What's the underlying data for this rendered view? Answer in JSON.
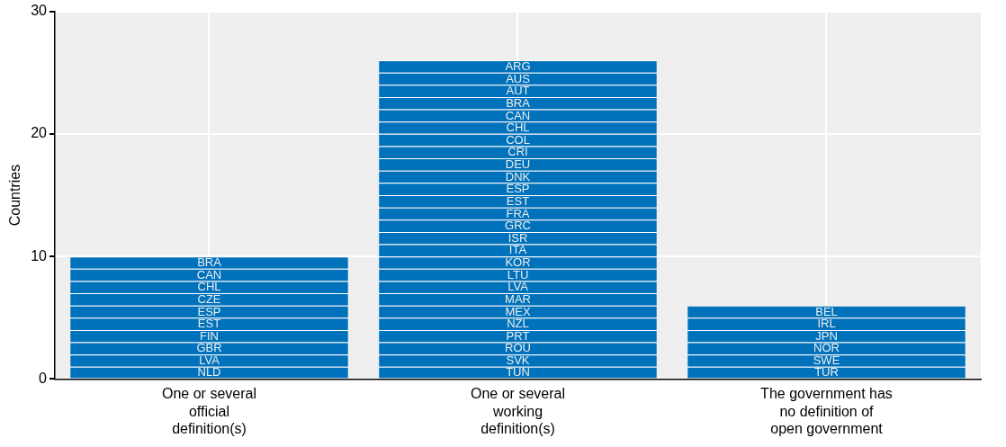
{
  "chart_data": {
    "type": "bar",
    "stacked": true,
    "ylabel": "Countries",
    "categories": [
      "One or several official definition(s)",
      "One or several working definition(s)",
      "The government has no definition of open government"
    ],
    "ylim": [
      0,
      30
    ],
    "yticks": [
      0,
      10,
      20,
      30
    ],
    "grid": true,
    "legend": false,
    "series": [
      {
        "color": "#0072bc",
        "values": [
          1,
          1,
          1
        ],
        "value_labels": [
          "NLD",
          "TUN",
          "TUR"
        ]
      },
      {
        "color": "#0072bc",
        "values": [
          1,
          1,
          1
        ],
        "value_labels": [
          "LVA",
          "SVK",
          "SWE"
        ]
      },
      {
        "color": "#0072bc",
        "values": [
          1,
          1,
          1
        ],
        "value_labels": [
          "GBR",
          "ROU",
          "NOR"
        ]
      },
      {
        "color": "#0072bc",
        "values": [
          1,
          1,
          1
        ],
        "value_labels": [
          "FIN",
          "PRT",
          "JPN"
        ]
      },
      {
        "color": "#0072bc",
        "values": [
          1,
          1,
          1
        ],
        "value_labels": [
          "EST",
          "NZL",
          "IRL"
        ]
      },
      {
        "color": "#0072bc",
        "values": [
          1,
          1,
          1
        ],
        "value_labels": [
          "ESP",
          "MEX",
          "BEL"
        ]
      },
      {
        "color": "#0072bc",
        "values": [
          1,
          1,
          null
        ],
        "value_labels": [
          "CZE",
          "MAR",
          null
        ]
      },
      {
        "color": "#0072bc",
        "values": [
          1,
          1,
          null
        ],
        "value_labels": [
          "CHL",
          "LVA",
          null
        ]
      },
      {
        "color": "#0072bc",
        "values": [
          1,
          1,
          null
        ],
        "value_labels": [
          "CAN",
          "LTU",
          null
        ]
      },
      {
        "color": "#0072bc",
        "values": [
          1,
          1,
          null
        ],
        "value_labels": [
          "BRA",
          "KOR",
          null
        ]
      },
      {
        "color": "#0072bc",
        "values": [
          null,
          1,
          null
        ],
        "value_labels": [
          null,
          "ITA",
          null
        ]
      },
      {
        "color": "#0072bc",
        "values": [
          null,
          1,
          null
        ],
        "value_labels": [
          null,
          "ISR",
          null
        ]
      },
      {
        "color": "#0072bc",
        "values": [
          null,
          1,
          null
        ],
        "value_labels": [
          null,
          "GRC",
          null
        ]
      },
      {
        "color": "#0072bc",
        "values": [
          null,
          1,
          null
        ],
        "value_labels": [
          null,
          "FRA",
          null
        ]
      },
      {
        "color": "#0072bc",
        "values": [
          null,
          1,
          null
        ],
        "value_labels": [
          null,
          "EST",
          null
        ]
      },
      {
        "color": "#0072bc",
        "values": [
          null,
          1,
          null
        ],
        "value_labels": [
          null,
          "ESP",
          null
        ]
      },
      {
        "color": "#0072bc",
        "values": [
          null,
          1,
          null
        ],
        "value_labels": [
          null,
          "DNK",
          null
        ]
      },
      {
        "color": "#0072bc",
        "values": [
          null,
          1,
          null
        ],
        "value_labels": [
          null,
          "DEU",
          null
        ]
      },
      {
        "color": "#0072bc",
        "values": [
          null,
          1,
          null
        ],
        "value_labels": [
          null,
          "CRI",
          null
        ]
      },
      {
        "color": "#0072bc",
        "values": [
          null,
          1,
          null
        ],
        "value_labels": [
          null,
          "COL",
          null
        ]
      },
      {
        "color": "#0072bc",
        "values": [
          null,
          1,
          null
        ],
        "value_labels": [
          null,
          "CHL",
          null
        ]
      },
      {
        "color": "#0072bc",
        "values": [
          null,
          1,
          null
        ],
        "value_labels": [
          null,
          "CAN",
          null
        ]
      },
      {
        "color": "#0072bc",
        "values": [
          null,
          1,
          null
        ],
        "value_labels": [
          null,
          "BRA",
          null
        ]
      },
      {
        "color": "#0072bc",
        "values": [
          null,
          1,
          null
        ],
        "value_labels": [
          null,
          "AUT",
          null
        ]
      },
      {
        "color": "#0072bc",
        "values": [
          null,
          1,
          null
        ],
        "value_labels": [
          null,
          "AUS",
          null
        ]
      },
      {
        "color": "#0072bc",
        "values": [
          null,
          1,
          null
        ],
        "value_labels": [
          null,
          "ARG",
          null
        ]
      }
    ]
  }
}
